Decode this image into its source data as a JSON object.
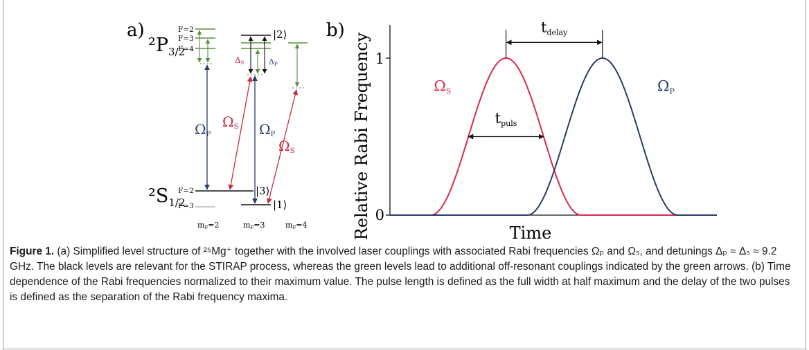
{
  "panel_a": {
    "label": "a)",
    "p_level": "²P",
    "p_level_sub": "3/2",
    "p_hyperfine": [
      "F=2",
      "F=3",
      "F=4"
    ],
    "s_level": "²S",
    "s_level_sub": "1/2",
    "s_hyperfine": [
      "F=2",
      "F=3"
    ],
    "ket2": "|2⟩",
    "ket3": "|3⟩",
    "ket1": "|1⟩",
    "delta_s": "Δ",
    "delta_s_sub": "S",
    "delta_p": "Δ",
    "delta_p_sub": "P",
    "omega": "Ω",
    "omega_p_sub": "P",
    "omega_s_sub": "S",
    "mf_labels": [
      {
        "main": "m",
        "sub": "F",
        "rest": "=2"
      },
      {
        "main": "m",
        "sub": "F",
        "rest": "=3"
      },
      {
        "main": "m",
        "sub": "F",
        "rest": "=4"
      }
    ]
  },
  "chart_data": {
    "type": "line",
    "panel_label": "b)",
    "xlabel": "Time",
    "ylabel": "Relative Rabi Frequency",
    "y_ticks": [
      "0",
      "1"
    ],
    "ylim": [
      0,
      1
    ],
    "x_ticks": [],
    "grid": false,
    "series": [
      {
        "name": "Ω_S",
        "label_main": "Ω",
        "label_sub": "S",
        "color": "#d62a4e",
        "center": 0.355,
        "fwhm": 0.23,
        "peak": 1
      },
      {
        "name": "Ω_P",
        "label_main": "Ω",
        "label_sub": "P",
        "color": "#2b3a66",
        "center": 0.65,
        "fwhm": 0.23,
        "peak": 1
      }
    ],
    "annotations": [
      {
        "text_main": "t",
        "text_sub": "delay"
      },
      {
        "text_main": "t",
        "text_sub": "puls"
      }
    ]
  },
  "caption": {
    "label": "Figure 1.",
    "text": " (a) Simplified level structure of ²⁵Mg⁺ together with the involved laser couplings with associated Rabi frequencies Ωₚ and Ωₛ, and detunings Δₚ ≈ Δₛ ≈ 9.2 GHz. The black levels are relevant for the STIRAP process, whereas the green levels lead to additional off-resonant couplings indicated by the green arrows. (b) Time dependence of the Rabi frequencies normalized to their maximum value. The pulse length is defined as the full width at half maximum and the delay of the two pulses is defined as the separation of the Rabi frequency maxima."
  },
  "colors": {
    "stirap_level": "#111111",
    "offres_level": "#5a8e3f",
    "pump": "#2b3a66",
    "stokes": "#c8283c"
  }
}
